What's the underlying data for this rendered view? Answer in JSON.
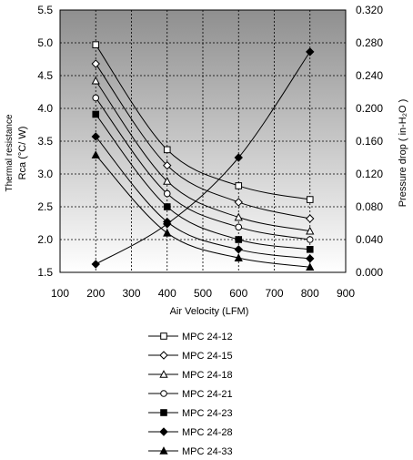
{
  "chart_data": {
    "type": "line",
    "xlabel": "Air Velocity (LFM)",
    "ylabel_left_line1": "Thermal resistance",
    "ylabel_left_line2": "Rca (°C/ W)",
    "ylabel_right": "Pressure drop ( in-H₂O )",
    "xlim": [
      100,
      900
    ],
    "ylim_left": [
      1.5,
      5.5
    ],
    "ylim_right": [
      0,
      0.32
    ],
    "x_ticks": [
      100,
      200,
      300,
      400,
      500,
      600,
      700,
      800,
      900
    ],
    "x_tick_labels": [
      "100",
      "200",
      "300",
      "400",
      "500",
      "600",
      "700",
      "800",
      "900"
    ],
    "y_ticks_left": [
      1.5,
      2.0,
      2.5,
      3.0,
      3.5,
      4.0,
      4.5,
      5.0,
      5.5
    ],
    "y_tick_labels_left": [
      "1.5",
      "2.0",
      "2.5",
      "3.0",
      "3.5",
      "4.0",
      "4.5",
      "5.0",
      "5.5"
    ],
    "y_ticks_right": [
      0,
      0.04,
      0.08,
      0.12,
      0.16,
      0.2,
      0.24,
      0.28,
      0.32
    ],
    "y_tick_labels_right": [
      "0.000",
      "0.040",
      "0.080",
      "0.120",
      "0.160",
      "0.200",
      "0.240",
      "0.280",
      "0.320"
    ],
    "grid": true,
    "legend_position": "bottom",
    "background": "gray-gradient",
    "x": [
      200,
      400,
      600,
      800
    ],
    "series": [
      {
        "name": "MPC 24-12",
        "marker": "square-open",
        "values": [
          4.97,
          3.37,
          2.82,
          2.61
        ]
      },
      {
        "name": "MPC 24-15",
        "marker": "diamond-open",
        "values": [
          4.68,
          3.13,
          2.57,
          2.32
        ]
      },
      {
        "name": "MPC 24-18",
        "marker": "triangle-open",
        "values": [
          4.42,
          2.89,
          2.34,
          2.13
        ]
      },
      {
        "name": "MPC 24-21",
        "marker": "circle-open",
        "values": [
          4.16,
          2.7,
          2.19,
          2.0
        ]
      },
      {
        "name": "MPC 24-23",
        "marker": "square-filled",
        "values": [
          3.91,
          2.5,
          2.0,
          1.85
        ]
      },
      {
        "name": "MPC 24-28",
        "marker": "diamond-filled",
        "values": [
          3.57,
          2.27,
          1.85,
          1.71
        ]
      },
      {
        "name": "MPC 24-33",
        "marker": "triangle-filled",
        "values": [
          3.29,
          2.1,
          1.72,
          1.58
        ]
      }
    ],
    "pressure_series": {
      "marker": "diamond-filled",
      "values": [
        0.01,
        0.059,
        0.14,
        0.269
      ]
    }
  }
}
